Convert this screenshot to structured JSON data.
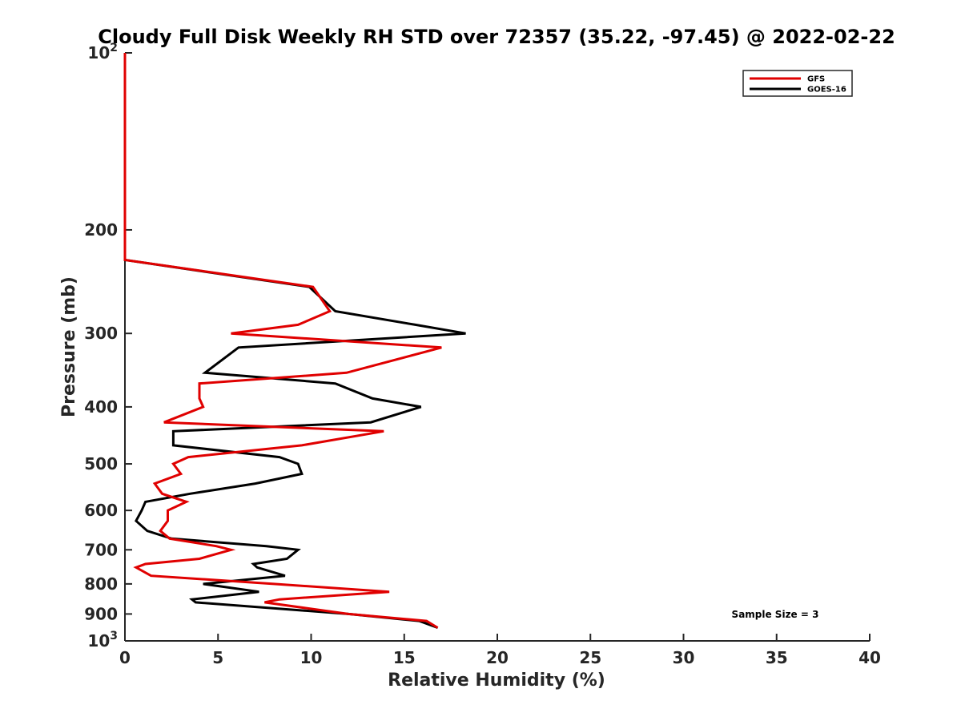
{
  "chart_data": {
    "type": "line",
    "title": "Cloudy Full Disk Weekly RH STD over 72357 (35.22, -97.45) @ 2022-02-22",
    "xlabel": "Relative Humidity (%)",
    "ylabel": "Pressure (mb)",
    "xlim": [
      0,
      40
    ],
    "ylim": [
      100,
      1000
    ],
    "y_scale": "log",
    "y_reversed": true,
    "x_ticks": [
      0,
      5,
      10,
      15,
      20,
      25,
      30,
      35,
      40
    ],
    "x_tick_labels": [
      "0",
      "5",
      "10",
      "15",
      "20",
      "25",
      "30",
      "35",
      "40"
    ],
    "y_ticks": [
      100,
      200,
      300,
      400,
      500,
      600,
      700,
      800,
      900,
      1000
    ],
    "y_tick_labels": [
      "10²",
      "200",
      "300",
      "400",
      "500",
      "600",
      "700",
      "800",
      "900",
      "10³"
    ],
    "grid": false,
    "legend_position": "top-right",
    "annotation": "Sample Size = 3",
    "series": [
      {
        "name": "GFS",
        "color": "#e00000",
        "points": [
          [
            0,
            100
          ],
          [
            0,
            125
          ],
          [
            0,
            150
          ],
          [
            0,
            175
          ],
          [
            0,
            200
          ],
          [
            0,
            225
          ],
          [
            10.1,
            250
          ],
          [
            11.0,
            275
          ],
          [
            9.3,
            290
          ],
          [
            5.7,
            300
          ],
          [
            17.0,
            317
          ],
          [
            11.9,
            350
          ],
          [
            4.0,
            365
          ],
          [
            4.0,
            387
          ],
          [
            4.2,
            400
          ],
          [
            2.1,
            425
          ],
          [
            13.9,
            440
          ],
          [
            9.5,
            465
          ],
          [
            3.4,
            487
          ],
          [
            2.6,
            500
          ],
          [
            3.0,
            520
          ],
          [
            1.6,
            540
          ],
          [
            2.0,
            562
          ],
          [
            3.3,
            580
          ],
          [
            2.3,
            600
          ],
          [
            2.3,
            625
          ],
          [
            1.9,
            650
          ],
          [
            2.4,
            670
          ],
          [
            4.9,
            690
          ],
          [
            5.7,
            700
          ],
          [
            4.0,
            725
          ],
          [
            1.1,
            740
          ],
          [
            0.6,
            750
          ],
          [
            1.4,
            775
          ],
          [
            8.0,
            800
          ],
          [
            14.2,
            825
          ],
          [
            8.3,
            850
          ],
          [
            7.5,
            860
          ],
          [
            12.0,
            900
          ],
          [
            16.2,
            925
          ],
          [
            16.8,
            950
          ]
        ]
      },
      {
        "name": "GOES-16",
        "color": "#000000",
        "points": [
          [
            0,
            100
          ],
          [
            0,
            125
          ],
          [
            0,
            150
          ],
          [
            0,
            175
          ],
          [
            0,
            200
          ],
          [
            0,
            225
          ],
          [
            9.9,
            250
          ],
          [
            11.3,
            275
          ],
          [
            15.6,
            290
          ],
          [
            18.3,
            300
          ],
          [
            6.1,
            317
          ],
          [
            4.3,
            350
          ],
          [
            11.3,
            365
          ],
          [
            13.3,
            387
          ],
          [
            15.9,
            400
          ],
          [
            13.2,
            425
          ],
          [
            2.6,
            440
          ],
          [
            2.6,
            465
          ],
          [
            8.3,
            487
          ],
          [
            9.3,
            500
          ],
          [
            9.5,
            520
          ],
          [
            7.0,
            540
          ],
          [
            3.5,
            562
          ],
          [
            1.1,
            580
          ],
          [
            0.9,
            600
          ],
          [
            0.6,
            625
          ],
          [
            1.2,
            650
          ],
          [
            2.5,
            670
          ],
          [
            7.6,
            690
          ],
          [
            9.3,
            700
          ],
          [
            8.7,
            725
          ],
          [
            6.9,
            740
          ],
          [
            7.1,
            750
          ],
          [
            8.6,
            775
          ],
          [
            4.2,
            800
          ],
          [
            7.2,
            825
          ],
          [
            3.6,
            850
          ],
          [
            3.8,
            860
          ],
          [
            12.0,
            900
          ],
          [
            15.8,
            925
          ],
          [
            16.8,
            950
          ]
        ]
      }
    ]
  }
}
